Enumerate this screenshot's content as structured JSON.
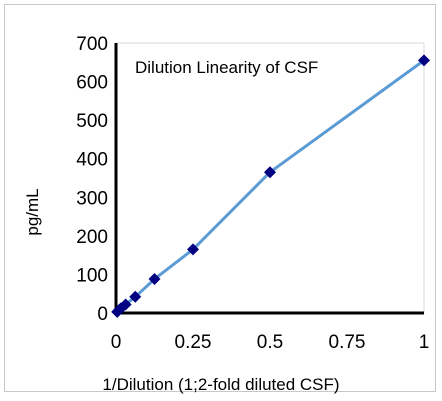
{
  "chart_data": {
    "type": "line",
    "title": "Dilution Linearity of  CSF",
    "xlabel": "1/Dilution (1;2-fold diluted CSF)",
    "ylabel": "pg/mL",
    "xlim": [
      0,
      1
    ],
    "ylim": [
      0,
      700
    ],
    "xticks": [
      "0",
      "0.25",
      "0.5",
      "0.75",
      "1"
    ],
    "yticks": [
      "0",
      "100",
      "200",
      "300",
      "400",
      "500",
      "600",
      "700"
    ],
    "grid": false,
    "legend": "none",
    "series": [
      {
        "x": [
          0.00390625,
          0.0078125,
          0.015625,
          0.03125,
          0.0625,
          0.125,
          0.25,
          0.5,
          1
        ],
        "y": [
          3,
          6,
          12,
          22,
          42,
          88,
          165,
          365,
          655
        ],
        "line_color": "#5b9bd5",
        "marker_color": "#000080",
        "marker": "diamond"
      }
    ]
  }
}
